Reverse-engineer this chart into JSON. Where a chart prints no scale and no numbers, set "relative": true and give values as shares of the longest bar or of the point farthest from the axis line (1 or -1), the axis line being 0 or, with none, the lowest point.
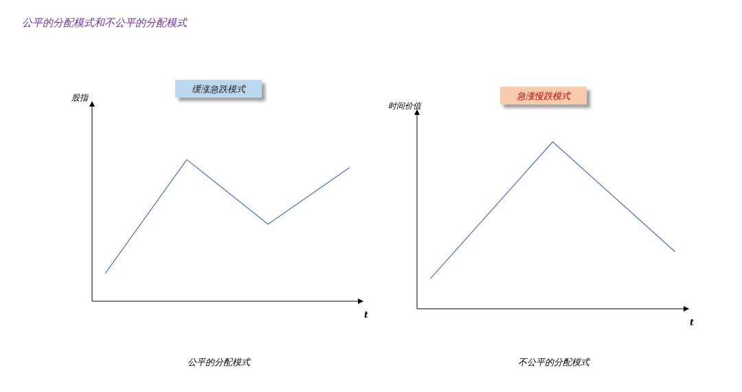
{
  "chart_data": [
    {
      "type": "other",
      "title": "公平的分配模式和不公平的分配模式"
    },
    {
      "type": "line",
      "title": "缓涨急跌模式",
      "ylabel": "股指",
      "xlabel": "t",
      "relative": true,
      "categories": [
        null,
        null,
        null,
        null
      ],
      "series": [
        {
          "color": "#4472c4",
          "values": [
            0.2,
            1,
            0.544,
            0.942
          ]
        }
      ],
      "annotations": [
        "公平的分配模式"
      ]
    },
    {
      "type": "line",
      "title": "急涨慢跌模式",
      "ylabel": "时间价值",
      "xlabel": "t",
      "relative": true,
      "categories": [
        null,
        null,
        null
      ],
      "series": [
        {
          "color": "#4472c4",
          "values": [
            0.182,
            1,
            0.343
          ]
        }
      ],
      "annotations": [
        "不公平的分配模式"
      ]
    }
  ]
}
